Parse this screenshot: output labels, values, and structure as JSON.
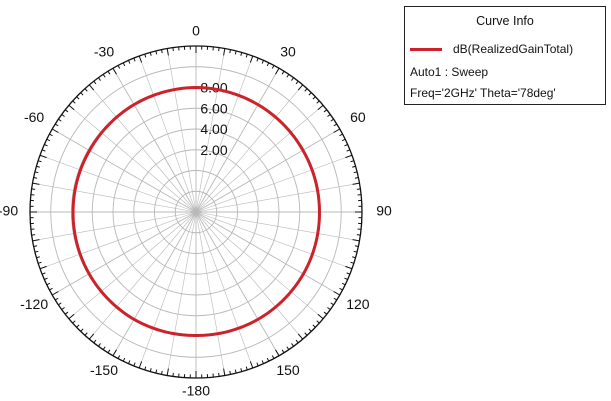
{
  "chart_data": {
    "type": "polar",
    "angular_ticks": [
      "0",
      "30",
      "60",
      "90",
      "120",
      "150",
      "-180",
      "-150",
      "-120",
      "-90",
      "-60",
      "-30"
    ],
    "angular_tick_values_deg": [
      0,
      30,
      60,
      90,
      120,
      150,
      180,
      210,
      240,
      270,
      300,
      330
    ],
    "radial_ticks": [
      "2.00",
      "4.00",
      "6.00",
      "8.00"
    ],
    "radial_tick_values": [
      2,
      4,
      6,
      8
    ],
    "radial_range": [
      -4,
      12
    ],
    "grid": true,
    "legend_position": "top-right",
    "series": [
      {
        "name": "dB(RealizedGainTotal)",
        "color": "#cc2229",
        "angles_deg": [
          0,
          30,
          60,
          90,
          120,
          150,
          180,
          210,
          240,
          270,
          300,
          330,
          360
        ],
        "values": [
          8.0,
          7.95,
          7.9,
          7.9,
          7.95,
          7.95,
          7.9,
          7.95,
          7.9,
          7.85,
          7.85,
          7.95,
          8.0
        ]
      }
    ]
  },
  "legend": {
    "title": "Curve Info",
    "series_label": "dB(RealizedGainTotal)",
    "sweep_label": "Auto1 : Sweep",
    "params_label": "Freq='2GHz' Theta='78deg'"
  },
  "colors": {
    "curve": "#cc2229",
    "grid": "#b8b8b8",
    "axis": "#111111"
  }
}
